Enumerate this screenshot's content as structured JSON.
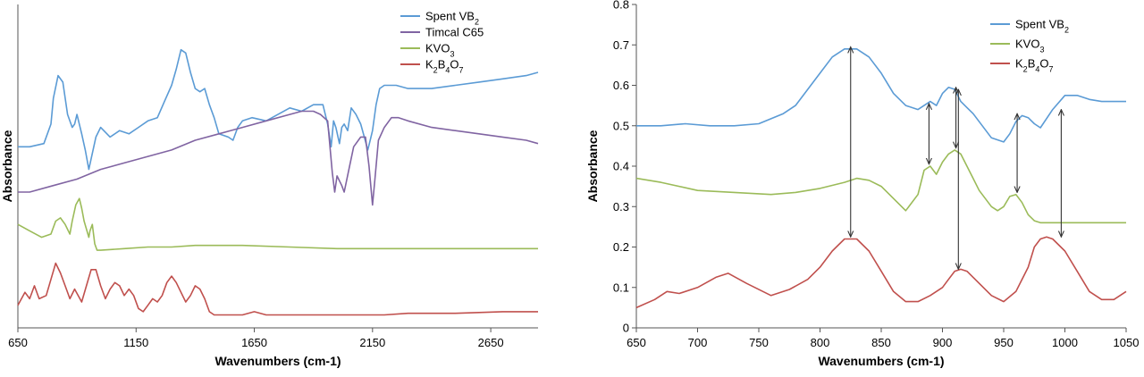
{
  "chart_data": [
    {
      "type": "line",
      "title": "",
      "xlabel": "Wavenumbers (cm-1)",
      "ylabel": "Absorbance",
      "xlim": [
        650,
        2850
      ],
      "ylim": [
        0,
        10
      ],
      "xticks": [
        650,
        1150,
        1650,
        2150,
        2650
      ],
      "yticks_shown": false,
      "grid": false,
      "legend_position": "top-right",
      "series": [
        {
          "name": "Spent VB2",
          "legend_html": "Spent VB<tspan baseline-shift='sub' font-size='9'>2</tspan>",
          "color": "#5b9bd5",
          "x": [
            650,
            700,
            760,
            790,
            800,
            820,
            840,
            860,
            880,
            890,
            900,
            920,
            935,
            950,
            980,
            1000,
            1040,
            1080,
            1120,
            1160,
            1200,
            1240,
            1270,
            1300,
            1320,
            1340,
            1360,
            1380,
            1400,
            1420,
            1440,
            1460,
            1480,
            1500,
            1540,
            1560,
            1580,
            1600,
            1640,
            1700,
            1750,
            1800,
            1850,
            1900,
            1940,
            1960,
            1975,
            1985,
            1995,
            2010,
            2020,
            2030,
            2045,
            2060,
            2080,
            2100,
            2115,
            2130,
            2140,
            2150,
            2165,
            2180,
            2200,
            2250,
            2300,
            2400,
            2500,
            2600,
            2700,
            2800,
            2850
          ],
          "y": [
            5.6,
            5.6,
            5.7,
            6.3,
            7.1,
            7.8,
            7.6,
            6.6,
            6.2,
            6.3,
            6.6,
            6.0,
            5.5,
            4.9,
            5.9,
            6.2,
            5.9,
            6.1,
            6.0,
            6.2,
            6.4,
            6.5,
            7.0,
            7.5,
            8.0,
            8.6,
            8.5,
            7.9,
            7.4,
            7.3,
            7.4,
            6.9,
            6.5,
            6.0,
            5.9,
            5.8,
            6.2,
            6.4,
            6.5,
            6.4,
            6.6,
            6.8,
            6.7,
            6.9,
            6.9,
            6.3,
            5.6,
            6.4,
            6.2,
            5.7,
            6.2,
            6.3,
            6.1,
            6.8,
            6.6,
            6.3,
            5.9,
            5.5,
            5.8,
            6.1,
            6.9,
            7.4,
            7.5,
            7.5,
            7.4,
            7.4,
            7.5,
            7.6,
            7.7,
            7.8,
            7.9
          ]
        },
        {
          "name": "Timcal C65",
          "legend_html": "Timcal C65",
          "color": "#8064a2",
          "x": [
            650,
            700,
            800,
            900,
            1000,
            1100,
            1200,
            1300,
            1400,
            1500,
            1600,
            1700,
            1800,
            1850,
            1900,
            1930,
            1960,
            1980,
            1990,
            2000,
            2020,
            2030,
            2050,
            2070,
            2100,
            2120,
            2135,
            2150,
            2160,
            2175,
            2200,
            2230,
            2260,
            2300,
            2400,
            2500,
            2600,
            2700,
            2800,
            2850
          ],
          "y": [
            4.2,
            4.2,
            4.4,
            4.6,
            4.9,
            5.1,
            5.3,
            5.5,
            5.8,
            6.0,
            6.2,
            6.4,
            6.6,
            6.7,
            6.7,
            6.6,
            6.4,
            4.8,
            4.2,
            4.7,
            4.4,
            4.2,
            4.9,
            5.6,
            5.9,
            5.9,
            5.0,
            3.8,
            4.6,
            5.8,
            6.2,
            6.5,
            6.5,
            6.4,
            6.2,
            6.1,
            6.0,
            5.9,
            5.8,
            5.7
          ]
        },
        {
          "name": "KVO3",
          "legend_html": "KVO<tspan baseline-shift='sub' font-size='9'>3</tspan>",
          "color": "#9bbb59",
          "x": [
            650,
            700,
            750,
            790,
            810,
            830,
            850,
            870,
            880,
            895,
            910,
            920,
            930,
            950,
            955,
            965,
            975,
            985,
            1000,
            1100,
            1200,
            1300,
            1400,
            1600,
            1800,
            2000,
            2200,
            2400,
            2600,
            2850
          ],
          "y": [
            3.2,
            3.0,
            2.8,
            2.9,
            3.3,
            3.4,
            3.2,
            2.9,
            3.3,
            3.8,
            4.0,
            3.7,
            3.3,
            2.8,
            3.0,
            3.2,
            2.6,
            2.4,
            2.4,
            2.45,
            2.5,
            2.5,
            2.55,
            2.55,
            2.5,
            2.45,
            2.45,
            2.45,
            2.45,
            2.45
          ]
        },
        {
          "name": "K2B4O7",
          "legend_html": "K<tspan baseline-shift='sub' font-size='9'>2</tspan>B<tspan baseline-shift='sub' font-size='9'>4</tspan>O<tspan baseline-shift='sub' font-size='9'>7</tspan>",
          "color": "#c0504d",
          "x": [
            650,
            680,
            700,
            720,
            740,
            770,
            790,
            810,
            830,
            850,
            870,
            890,
            920,
            940,
            960,
            980,
            1000,
            1020,
            1040,
            1060,
            1080,
            1100,
            1120,
            1140,
            1160,
            1180,
            1200,
            1220,
            1240,
            1260,
            1280,
            1300,
            1320,
            1340,
            1360,
            1380,
            1400,
            1420,
            1440,
            1460,
            1480,
            1500,
            1550,
            1600,
            1650,
            1700,
            1750,
            1800,
            1900,
            2000,
            2100,
            2200,
            2300,
            2500,
            2700,
            2850
          ],
          "y": [
            0.7,
            1.1,
            0.9,
            1.3,
            0.9,
            1.0,
            1.5,
            2.0,
            1.7,
            1.3,
            0.9,
            1.2,
            0.8,
            1.3,
            1.8,
            1.8,
            1.3,
            0.9,
            1.2,
            1.4,
            1.3,
            1.0,
            1.2,
            1.0,
            0.6,
            0.5,
            0.7,
            0.9,
            0.8,
            1.0,
            1.4,
            1.6,
            1.4,
            1.1,
            0.8,
            1.0,
            1.3,
            1.2,
            0.9,
            0.5,
            0.4,
            0.4,
            0.4,
            0.4,
            0.5,
            0.4,
            0.4,
            0.4,
            0.4,
            0.4,
            0.4,
            0.4,
            0.45,
            0.45,
            0.5,
            0.5
          ]
        }
      ]
    },
    {
      "type": "line",
      "title": "",
      "xlabel": "Wavenumbers (cm-1)",
      "ylabel": "Absorbance",
      "xlim": [
        650,
        1050
      ],
      "ylim": [
        0,
        0.8
      ],
      "xticks": [
        650,
        700,
        750,
        800,
        850,
        900,
        950,
        1000,
        1050
      ],
      "yticks": [
        0,
        0.1,
        0.2,
        0.3,
        0.4,
        0.5,
        0.6,
        0.7,
        0.8
      ],
      "grid": false,
      "legend_position": "top-right",
      "series": [
        {
          "name": "Spent VB2",
          "legend_html": "Spent VB<tspan baseline-shift='sub' font-size='9'>2</tspan>",
          "color": "#5b9bd5",
          "x": [
            650,
            670,
            690,
            710,
            730,
            750,
            770,
            780,
            790,
            800,
            810,
            820,
            830,
            840,
            850,
            860,
            870,
            880,
            890,
            895,
            900,
            905,
            910,
            915,
            920,
            925,
            930,
            940,
            950,
            955,
            960,
            965,
            970,
            975,
            980,
            990,
            1000,
            1010,
            1020,
            1030,
            1040,
            1050
          ],
          "y": [
            0.5,
            0.5,
            0.505,
            0.5,
            0.5,
            0.505,
            0.53,
            0.55,
            0.59,
            0.63,
            0.67,
            0.69,
            0.69,
            0.67,
            0.63,
            0.58,
            0.55,
            0.54,
            0.56,
            0.55,
            0.58,
            0.595,
            0.59,
            0.56,
            0.545,
            0.53,
            0.51,
            0.47,
            0.46,
            0.48,
            0.51,
            0.525,
            0.52,
            0.505,
            0.495,
            0.54,
            0.575,
            0.575,
            0.565,
            0.56,
            0.56,
            0.56
          ]
        },
        {
          "name": "KVO3",
          "legend_html": "KVO<tspan baseline-shift='sub' font-size='9'>3</tspan>",
          "color": "#9bbb59",
          "x": [
            650,
            670,
            700,
            730,
            760,
            780,
            800,
            820,
            830,
            840,
            850,
            860,
            870,
            880,
            885,
            890,
            895,
            900,
            905,
            910,
            915,
            920,
            925,
            930,
            940,
            945,
            950,
            955,
            960,
            965,
            970,
            975,
            980,
            990,
            1000,
            1020,
            1040,
            1050
          ],
          "y": [
            0.37,
            0.36,
            0.34,
            0.335,
            0.33,
            0.335,
            0.345,
            0.36,
            0.37,
            0.365,
            0.35,
            0.32,
            0.29,
            0.33,
            0.39,
            0.4,
            0.38,
            0.41,
            0.43,
            0.44,
            0.43,
            0.4,
            0.37,
            0.34,
            0.3,
            0.29,
            0.3,
            0.325,
            0.33,
            0.31,
            0.28,
            0.265,
            0.26,
            0.26,
            0.26,
            0.26,
            0.26,
            0.26
          ]
        },
        {
          "name": "K2B4O7",
          "legend_html": "K<tspan baseline-shift='sub' font-size='9'>2</tspan>B<tspan baseline-shift='sub' font-size='9'>4</tspan>O<tspan baseline-shift='sub' font-size='9'>7</tspan>",
          "color": "#c0504d",
          "x": [
            650,
            665,
            675,
            685,
            700,
            715,
            725,
            740,
            760,
            775,
            790,
            800,
            810,
            820,
            830,
            840,
            850,
            860,
            870,
            880,
            890,
            900,
            905,
            910,
            915,
            920,
            930,
            940,
            950,
            960,
            970,
            975,
            980,
            985,
            990,
            1000,
            1010,
            1020,
            1030,
            1040,
            1050
          ],
          "y": [
            0.05,
            0.07,
            0.09,
            0.085,
            0.1,
            0.125,
            0.135,
            0.11,
            0.08,
            0.095,
            0.12,
            0.15,
            0.19,
            0.22,
            0.22,
            0.19,
            0.14,
            0.09,
            0.065,
            0.065,
            0.08,
            0.1,
            0.12,
            0.14,
            0.145,
            0.14,
            0.11,
            0.08,
            0.065,
            0.09,
            0.15,
            0.2,
            0.22,
            0.225,
            0.22,
            0.19,
            0.14,
            0.09,
            0.07,
            0.07,
            0.09
          ]
        }
      ],
      "arrows": [
        {
          "x": 825,
          "y1": 0.225,
          "y2": 0.695
        },
        {
          "x": 889,
          "y1": 0.405,
          "y2": 0.555
        },
        {
          "x": 911,
          "y1": 0.445,
          "y2": 0.595
        },
        {
          "x": 913,
          "y1": 0.145,
          "y2": 0.59
        },
        {
          "x": 961,
          "y1": 0.335,
          "y2": 0.53
        },
        {
          "x": 997,
          "y1": 0.225,
          "y2": 0.54
        }
      ]
    }
  ]
}
